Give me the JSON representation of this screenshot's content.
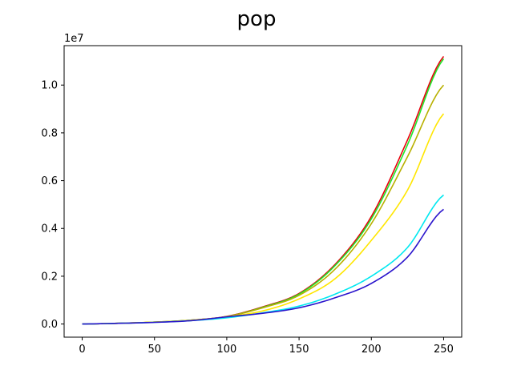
{
  "chart_data": {
    "type": "line",
    "title": "pop",
    "xlabel": "",
    "ylabel": "",
    "offset_text": "1e7",
    "xlim": [
      -12.5,
      262.5
    ],
    "ylim": [
      -0.055,
      1.165
    ],
    "xticks": [
      0,
      50,
      100,
      150,
      200,
      250
    ],
    "xtick_labels": [
      "0",
      "50",
      "100",
      "150",
      "200",
      "250"
    ],
    "yticks": [
      0.0,
      0.2,
      0.4,
      0.6,
      0.8,
      1.0
    ],
    "ytick_labels": [
      "0.0",
      "0.2",
      "0.4",
      "0.6",
      "0.8",
      "1.0"
    ],
    "grid": false,
    "x": [
      0,
      25,
      50,
      75,
      100,
      125,
      150,
      175,
      200,
      225,
      250
    ],
    "series": [
      {
        "color": "#e8000b",
        "values": [
          0.0,
          0.003,
          0.008,
          0.016,
          0.032,
          0.072,
          0.128,
          0.25,
          0.45,
          0.77,
          1.12
        ]
      },
      {
        "color": "#1ee82a",
        "values": [
          0.0,
          0.003,
          0.008,
          0.016,
          0.031,
          0.07,
          0.125,
          0.245,
          0.44,
          0.75,
          1.11
        ]
      },
      {
        "color": "#b8b000",
        "values": [
          0.0,
          0.003,
          0.008,
          0.016,
          0.031,
          0.068,
          0.12,
          0.23,
          0.42,
          0.7,
          1.0
        ]
      },
      {
        "color": "#ffe600",
        "values": [
          0.0,
          0.003,
          0.008,
          0.015,
          0.03,
          0.055,
          0.105,
          0.19,
          0.35,
          0.56,
          0.88
        ]
      },
      {
        "color": "#00e8f0",
        "values": [
          0.0,
          0.003,
          0.007,
          0.014,
          0.026,
          0.047,
          0.075,
          0.125,
          0.2,
          0.32,
          0.54
        ]
      },
      {
        "color": "#2a14cc",
        "values": [
          0.0,
          0.003,
          0.007,
          0.014,
          0.03,
          0.045,
          0.068,
          0.11,
          0.17,
          0.28,
          0.48
        ]
      }
    ]
  }
}
